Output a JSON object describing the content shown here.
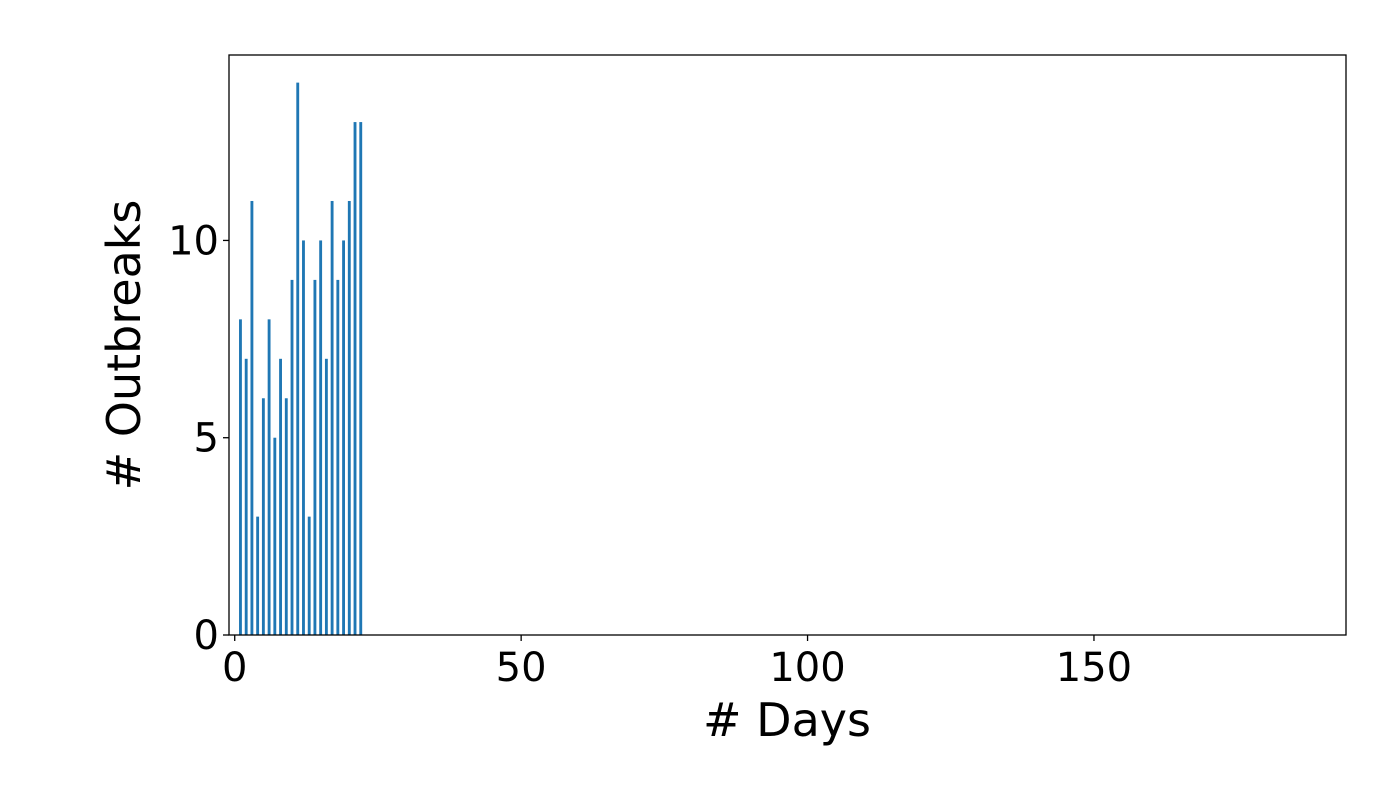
{
  "chart_data": {
    "type": "bar",
    "title": "",
    "xlabel": "# Days",
    "ylabel": "# Outbreaks",
    "x": [
      1,
      2,
      3,
      4,
      5,
      6,
      7,
      8,
      9,
      10,
      11,
      12,
      13,
      14,
      15,
      16,
      17,
      18,
      19,
      20,
      21,
      22
    ],
    "values": [
      8,
      7,
      11,
      3,
      6,
      8,
      5,
      7,
      6,
      9,
      14,
      10,
      3,
      9,
      10,
      7,
      11,
      9,
      10,
      11,
      13,
      13
    ],
    "xlim": [
      -1,
      194
    ],
    "ylim": [
      0,
      14.7
    ],
    "xticks": [
      0,
      50,
      100,
      150
    ],
    "yticks": [
      0,
      5,
      10
    ],
    "xtick_labels": [
      "0",
      "50",
      "100",
      "150"
    ],
    "ytick_labels": [
      "0",
      "5",
      "10"
    ],
    "bar_color": "#1f77b4",
    "grid": false,
    "legend": "none"
  }
}
